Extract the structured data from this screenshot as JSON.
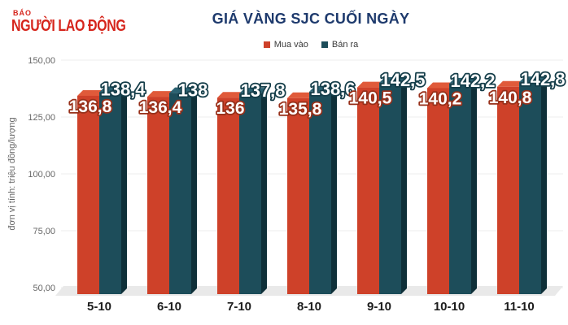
{
  "logo": {
    "top": "BÁO",
    "name": "NGƯỜI LAO ĐỘNG",
    "color": "#d6251c"
  },
  "title": {
    "text": "GIÁ VÀNG SJC CUỐI NGÀY",
    "color": "#1e3a6d"
  },
  "legend": [
    {
      "label": "Mua vào",
      "color": "#ce4129"
    },
    {
      "label": "Bán ra",
      "color": "#1d4d5a"
    }
  ],
  "axis": {
    "unit_label": "đơn vị tính: triệu đồng/lượng",
    "y_tick_labels": [
      "150,00",
      "125,00",
      "100,00",
      "75,00",
      "50,00"
    ],
    "y_tick_values": [
      150,
      125,
      100,
      75,
      50
    ]
  },
  "chart_data": {
    "type": "bar",
    "title": "GIÁ VÀNG SJC CUỐI NGÀY",
    "ylabel": "đơn vị tính: triệu đồng/lượng",
    "ylim": [
      50,
      150
    ],
    "y_tick_step": 25,
    "grid": true,
    "legend_position": "top-center",
    "style": "3d-columns",
    "categories": [
      "5-10",
      "6-10",
      "7-10",
      "8-10",
      "9-10",
      "10-10",
      "11-10"
    ],
    "series": [
      {
        "name": "Mua vào",
        "values": [
          136.8,
          136.4,
          136.0,
          135.8,
          140.5,
          140.2,
          140.8
        ],
        "labels": [
          "136,8",
          "136,4",
          "136",
          "135,8",
          "140,5",
          "140,2",
          "140,8"
        ],
        "color": "#ce4129",
        "color_top": "#e05a3a",
        "label_stroke": "#97301a"
      },
      {
        "name": "Bán ra",
        "values": [
          138.4,
          138.0,
          137.8,
          138.6,
          142.5,
          142.2,
          142.8
        ],
        "labels": [
          "138,4",
          "138",
          "137,8",
          "138,6",
          "142,5",
          "142,2",
          "142,8"
        ],
        "color": "#1d4d5a",
        "color_top": "#2b6272",
        "color_side": "#0f3039",
        "label_stroke": "#143d49"
      }
    ],
    "floor_color": "#e9e9e9"
  }
}
